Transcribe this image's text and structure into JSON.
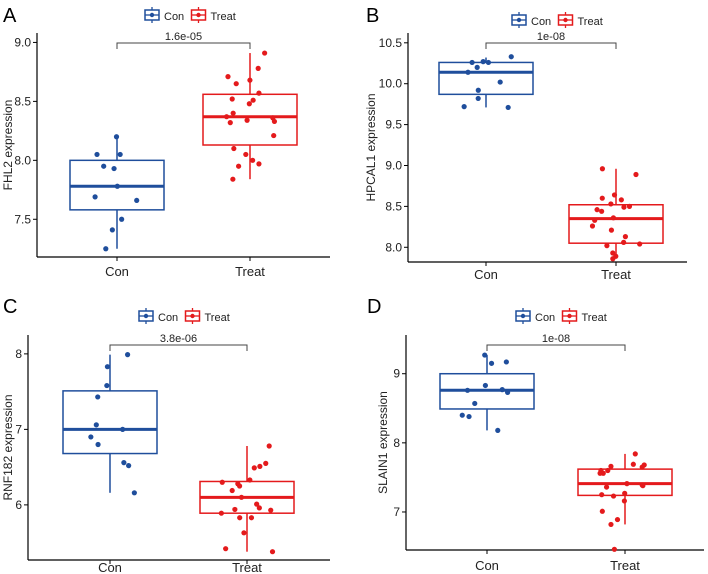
{
  "chart_data": [
    {
      "type": "boxplot",
      "panel_label": "A",
      "ylabel": "FHL2 expression",
      "categories": [
        "Con",
        "Treat"
      ],
      "ylim": [
        7.18,
        9.08
      ],
      "yticks": [
        7.5,
        8.0,
        8.5,
        9.0
      ],
      "ytick_labels": [
        "7.5",
        "8.0",
        "8.5",
        "9.0"
      ],
      "pvalue": "1.6e-05",
      "legend": [
        "Con",
        "Treat"
      ],
      "series": [
        {
          "name": "Con",
          "color": "#1f4e9c",
          "q1": 7.58,
          "median": 7.78,
          "q3": 8.0,
          "whisker_low": 7.25,
          "whisker_high": 8.2,
          "points": [
            8.2,
            8.05,
            8.05,
            7.95,
            7.93,
            7.78,
            7.69,
            7.66,
            7.5,
            7.41,
            7.25
          ]
        },
        {
          "name": "Treat",
          "color": "#e41a1c",
          "q1": 8.13,
          "median": 8.37,
          "q3": 8.56,
          "whisker_low": 7.84,
          "whisker_high": 8.91,
          "points": [
            8.91,
            8.78,
            8.71,
            8.68,
            8.65,
            8.57,
            8.52,
            8.51,
            8.48,
            8.4,
            8.37,
            8.36,
            8.33,
            8.32,
            8.34,
            8.21,
            8.1,
            8.05,
            8.0,
            7.97,
            7.95,
            7.84
          ]
        }
      ]
    },
    {
      "type": "boxplot",
      "panel_label": "B",
      "ylabel": "HPCAL1 expression",
      "categories": [
        "Con",
        "Treat"
      ],
      "ylim": [
        7.82,
        10.62
      ],
      "yticks": [
        8.0,
        8.5,
        9.0,
        9.5,
        10.0,
        10.5
      ],
      "ytick_labels": [
        "8.0",
        "8.5",
        "9.0",
        "9.5",
        "10.0",
        "10.5"
      ],
      "pvalue": "1e-08",
      "legend": [
        "Con",
        "Treat"
      ],
      "series": [
        {
          "name": "Con",
          "color": "#1f4e9c",
          "q1": 9.87,
          "median": 10.14,
          "q3": 10.26,
          "whisker_low": 9.71,
          "whisker_high": 10.32,
          "points": [
            10.33,
            10.27,
            10.26,
            10.26,
            10.2,
            10.14,
            10.02,
            9.92,
            9.82,
            9.72,
            9.71
          ]
        },
        {
          "name": "Treat",
          "color": "#e41a1c",
          "q1": 8.05,
          "median": 8.35,
          "q3": 8.52,
          "whisker_low": 7.89,
          "whisker_high": 8.96,
          "points": [
            8.96,
            8.89,
            8.64,
            8.6,
            8.58,
            8.53,
            8.5,
            8.49,
            8.46,
            8.44,
            8.36,
            8.33,
            8.26,
            8.21,
            8.13,
            8.06,
            8.04,
            8.02,
            7.93,
            7.89,
            7.86
          ]
        }
      ]
    },
    {
      "type": "boxplot",
      "panel_label": "C",
      "ylabel": "RNF182 expression",
      "categories": [
        "Con",
        "Treat"
      ],
      "ylim": [
        5.27,
        8.25
      ],
      "yticks": [
        6,
        7,
        8
      ],
      "ytick_labels": [
        "6",
        "7",
        "8"
      ],
      "pvalue": "3.8e-06",
      "legend": [
        "Con",
        "Treat"
      ],
      "series": [
        {
          "name": "Con",
          "color": "#1f4e9c",
          "q1": 6.68,
          "median": 7.0,
          "q3": 7.51,
          "whisker_low": 6.16,
          "whisker_high": 7.99,
          "points": [
            7.99,
            7.83,
            7.58,
            7.43,
            7.06,
            7.0,
            6.9,
            6.8,
            6.56,
            6.52,
            6.16
          ]
        },
        {
          "name": "Treat",
          "color": "#e41a1c",
          "q1": 5.89,
          "median": 6.1,
          "q3": 6.31,
          "whisker_low": 5.38,
          "whisker_high": 6.78,
          "points": [
            6.78,
            6.55,
            6.51,
            6.49,
            6.33,
            6.3,
            6.28,
            6.25,
            6.19,
            6.1,
            6.01,
            5.96,
            5.94,
            5.93,
            5.89,
            5.83,
            5.83,
            5.63,
            5.42,
            5.38
          ]
        }
      ]
    },
    {
      "type": "boxplot",
      "panel_label": "D",
      "ylabel": "SLAIN1 expression",
      "categories": [
        "Con",
        "Treat"
      ],
      "ylim": [
        6.45,
        9.56
      ],
      "yticks": [
        7,
        8,
        9
      ],
      "ytick_labels": [
        "7",
        "8",
        "9"
      ],
      "pvalue": "1e-08",
      "legend": [
        "Con",
        "Treat"
      ],
      "series": [
        {
          "name": "Con",
          "color": "#1f4e9c",
          "q1": 8.49,
          "median": 8.76,
          "q3": 9.0,
          "whisker_low": 8.18,
          "whisker_high": 9.27,
          "points": [
            9.27,
            9.17,
            9.15,
            8.83,
            8.76,
            8.77,
            8.73,
            8.57,
            8.4,
            8.38,
            8.18
          ]
        },
        {
          "name": "Treat",
          "color": "#e41a1c",
          "q1": 7.24,
          "median": 7.41,
          "q3": 7.62,
          "whisker_low": 6.82,
          "whisker_high": 7.84,
          "points": [
            7.84,
            7.69,
            7.68,
            7.66,
            7.65,
            7.6,
            7.6,
            7.56,
            7.56,
            7.41,
            7.39,
            7.38,
            7.36,
            7.27,
            7.25,
            7.23,
            7.16,
            7.01,
            6.89,
            6.82,
            6.46
          ]
        }
      ]
    }
  ]
}
